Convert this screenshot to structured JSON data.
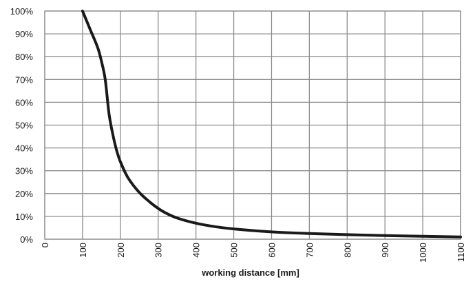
{
  "chart_data": {
    "type": "line",
    "title": "",
    "xlabel": "working distance [mm]",
    "ylabel": "",
    "xlim": [
      0,
      1100
    ],
    "ylim": [
      0,
      100
    ],
    "x_ticks": [
      0,
      100,
      200,
      300,
      400,
      500,
      600,
      700,
      800,
      900,
      1000,
      1100
    ],
    "x_tick_labels": [
      "0",
      "100",
      "200",
      "300",
      "400",
      "500",
      "600",
      "700",
      "800",
      "900",
      "1000",
      "1100"
    ],
    "y_ticks": [
      0,
      10,
      20,
      30,
      40,
      50,
      60,
      70,
      80,
      90,
      100
    ],
    "y_tick_labels": [
      "0%",
      "10%",
      "20%",
      "30%",
      "40%",
      "50%",
      "60%",
      "70%",
      "80%",
      "90%",
      "100%"
    ],
    "grid": true,
    "legend": "none",
    "line_color": "#1a1a1a",
    "grid_color": "#8c8c8c",
    "series": [
      {
        "x": [
          100,
          120,
          140,
          150,
          160,
          170,
          180,
          190,
          200,
          220,
          250,
          280,
          300,
          320,
          350,
          400,
          450,
          500,
          600,
          700,
          800,
          900,
          1000,
          1100
        ],
        "values": [
          100,
          92,
          84,
          78,
          70,
          55,
          46,
          39,
          34,
          27,
          20.5,
          16,
          13.5,
          11.5,
          9.3,
          7,
          5.5,
          4.5,
          3.2,
          2.5,
          2,
          1.6,
          1.3,
          1
        ]
      }
    ]
  }
}
